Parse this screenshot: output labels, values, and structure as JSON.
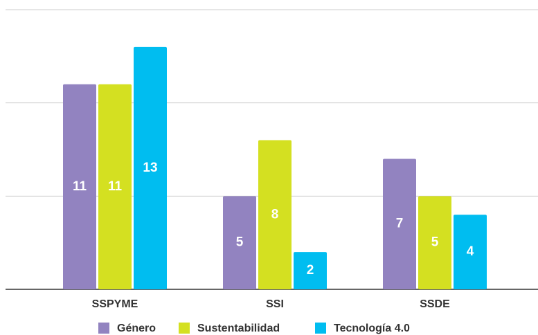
{
  "chart_data": {
    "type": "bar",
    "categories": [
      "SSPYME",
      "SSI",
      "SSDE"
    ],
    "series": [
      {
        "name": "Género",
        "color": "#9283c0",
        "values": [
          11,
          5,
          7
        ]
      },
      {
        "name": "Sustentabilidad",
        "color": "#d4e021",
        "values": [
          11,
          8,
          5
        ]
      },
      {
        "name": "Tecnología 4.0",
        "color": "#00bdf0",
        "values": [
          13,
          2,
          4
        ]
      }
    ],
    "ylim": [
      0,
      15
    ],
    "yticks": [
      0,
      5,
      10,
      15
    ],
    "grid": true,
    "legend": "bottom"
  }
}
